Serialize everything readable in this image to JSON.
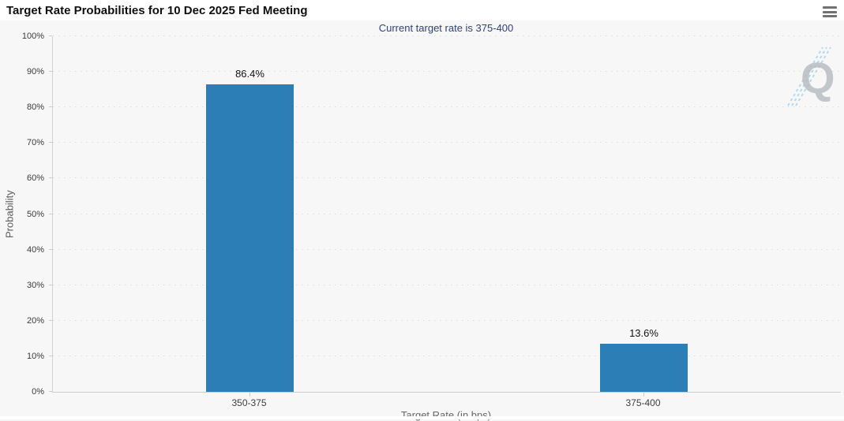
{
  "header": {
    "title": "Target Rate Probabilities for 10 Dec 2025 Fed Meeting"
  },
  "menu": {
    "icon": "hamburger-menu-icon"
  },
  "chart_data": {
    "type": "bar",
    "title": "Target Rate Probabilities for 10 Dec 2025 Fed Meeting",
    "subtitle": "Current target rate is 375-400",
    "categories": [
      "350-375",
      "375-400"
    ],
    "values": [
      86.4,
      13.6
    ],
    "value_labels": [
      "86.4%",
      "13.6%"
    ],
    "xlabel": "Target Rate (in bps)",
    "ylabel": "Probability",
    "ylim": [
      0,
      100
    ],
    "y_tick_step": 10,
    "y_tick_labels": [
      "0%",
      "10%",
      "20%",
      "30%",
      "40%",
      "50%",
      "60%",
      "70%",
      "80%",
      "90%",
      "100%"
    ],
    "grid": "horizontal-dotted",
    "legend": "none",
    "bar_color": "#2c7eb6",
    "subtitle_color": "#32427f",
    "watermark_letter": "Q"
  }
}
